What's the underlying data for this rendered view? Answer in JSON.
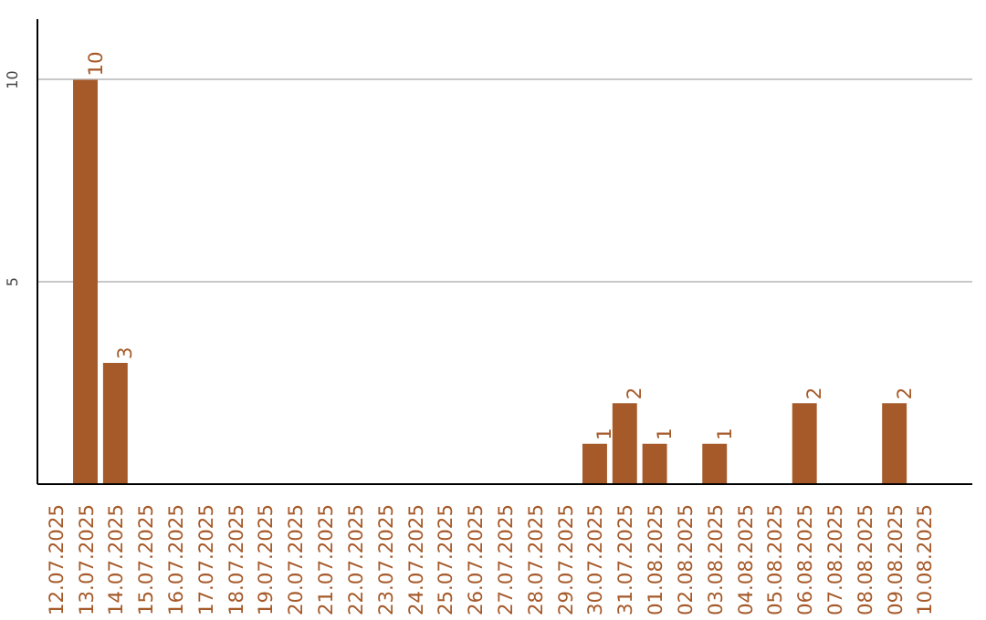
{
  "chart_data": {
    "type": "bar",
    "categories": [
      "12.07.2025",
      "13.07.2025",
      "14.07.2025",
      "15.07.2025",
      "16.07.2025",
      "17.07.2025",
      "18.07.2025",
      "19.07.2025",
      "20.07.2025",
      "21.07.2025",
      "22.07.2025",
      "23.07.2025",
      "24.07.2025",
      "25.07.2025",
      "26.07.2025",
      "27.07.2025",
      "28.07.2025",
      "29.07.2025",
      "30.07.2025",
      "31.07.2025",
      "01.08.2025",
      "02.08.2025",
      "03.08.2025",
      "04.08.2025",
      "05.08.2025",
      "06.08.2025",
      "07.08.2025",
      "08.08.2025",
      "09.08.2025",
      "10.08.2025"
    ],
    "values": [
      0,
      10,
      3,
      0,
      0,
      0,
      0,
      0,
      0,
      0,
      0,
      0,
      0,
      0,
      0,
      0,
      0,
      0,
      1,
      2,
      1,
      0,
      1,
      0,
      0,
      2,
      0,
      0,
      2,
      0
    ],
    "value_labels": [
      null,
      "10",
      "3",
      null,
      null,
      null,
      null,
      null,
      null,
      null,
      null,
      null,
      null,
      null,
      null,
      null,
      null,
      null,
      "1",
      "2",
      "1",
      null,
      "1",
      null,
      null,
      "2",
      null,
      null,
      "2",
      null
    ],
    "color": "#a65a2a",
    "ylim": [
      0,
      11.5
    ],
    "yticks": [
      5,
      10
    ],
    "grid": "y"
  }
}
